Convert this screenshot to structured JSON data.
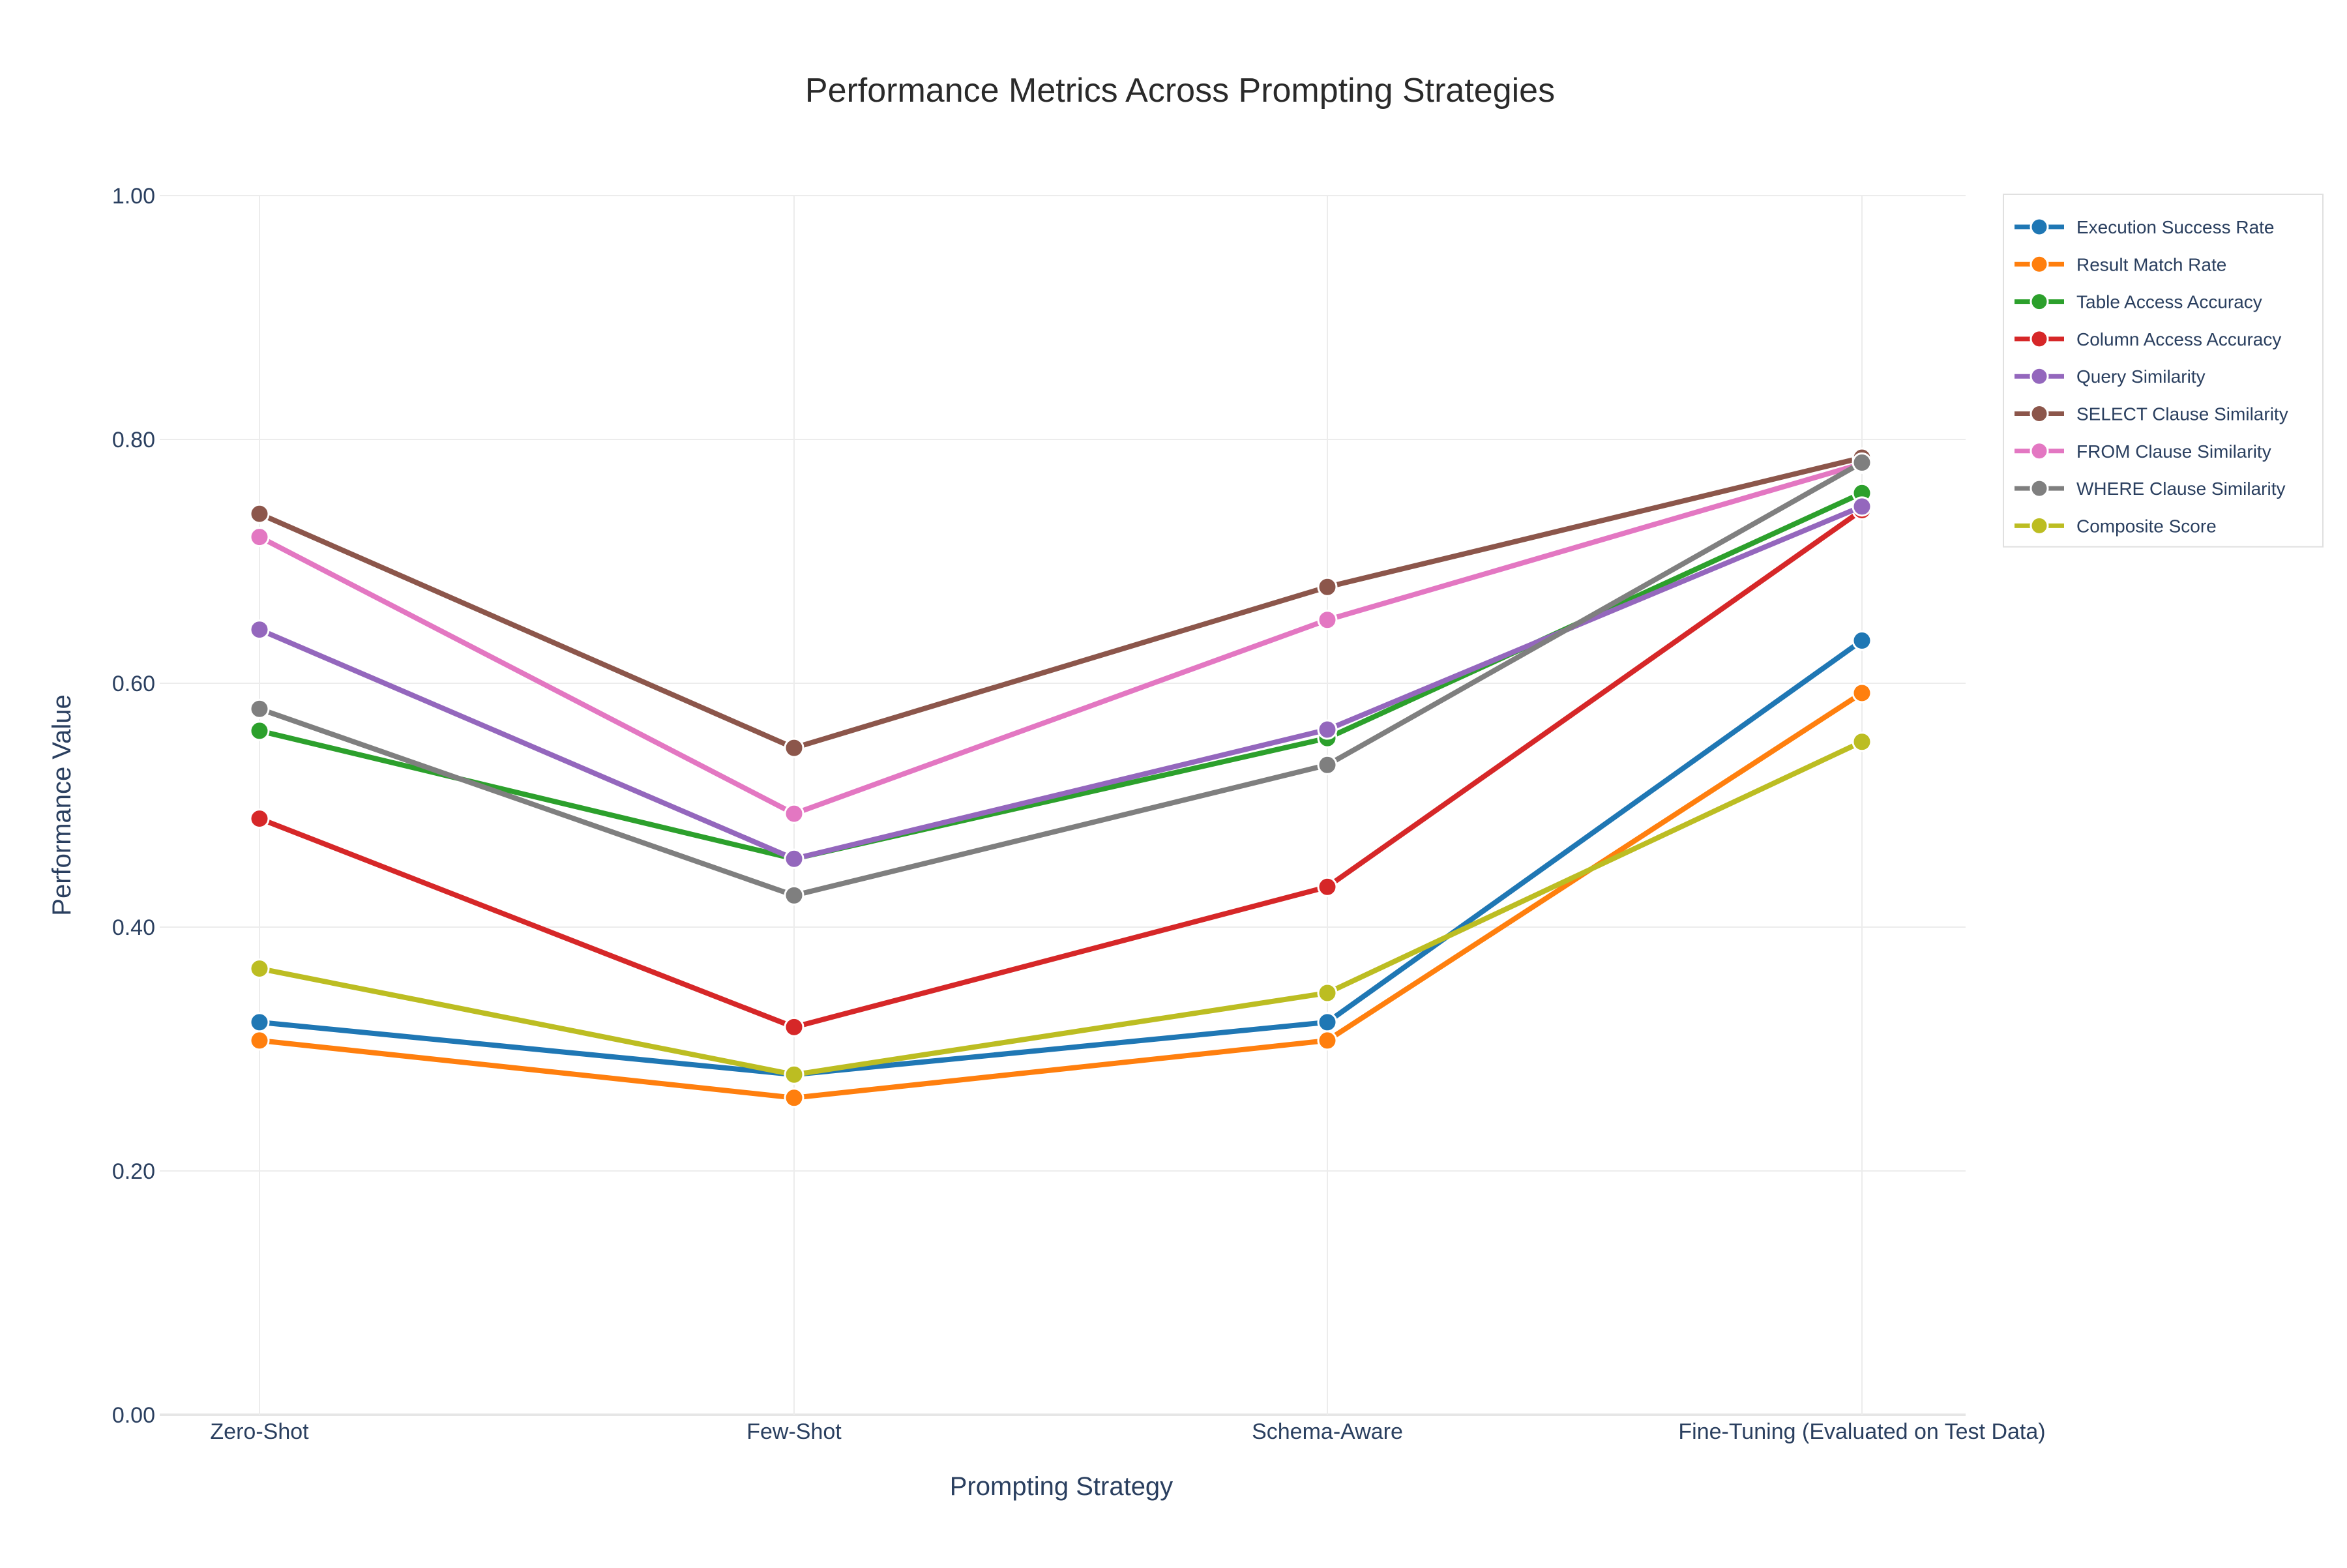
{
  "chart_data": {
    "type": "line",
    "title": "Performance Metrics Across Prompting Strategies",
    "xlabel": "Prompting Strategy",
    "ylabel": "Performance Value",
    "categories": [
      "Zero-Shot",
      "Few-Shot",
      "Schema-Aware",
      "Fine-Tuning (Evaluated on Test Data)"
    ],
    "ylim": [
      0,
      1
    ],
    "yticks": [
      "0.00",
      "0.20",
      "0.40",
      "0.60",
      "0.80",
      "1.00"
    ],
    "ytick_values": [
      0,
      0.2,
      0.4,
      0.6,
      0.8,
      1.0
    ],
    "grid": true,
    "legend_position": "top-right",
    "series": [
      {
        "name": "Execution Success Rate",
        "color": "#1f77b4",
        "values": [
          0.322,
          0.279,
          0.322,
          0.635
        ]
      },
      {
        "name": "Result Match Rate",
        "color": "#ff7f0e",
        "values": [
          0.307,
          0.26,
          0.307,
          0.592
        ]
      },
      {
        "name": "Table Access Accuracy",
        "color": "#2ca02c",
        "values": [
          0.561,
          0.456,
          0.555,
          0.756
        ]
      },
      {
        "name": "Column Access Accuracy",
        "color": "#d62728",
        "values": [
          0.489,
          0.318,
          0.433,
          0.742
        ]
      },
      {
        "name": "Query Similarity",
        "color": "#9467bd",
        "values": [
          0.644,
          0.456,
          0.562,
          0.745
        ]
      },
      {
        "name": "SELECT Clause Similarity",
        "color": "#8c564b",
        "values": [
          0.739,
          0.547,
          0.679,
          0.785
        ]
      },
      {
        "name": "FROM Clause Similarity",
        "color": "#e377c2",
        "values": [
          0.72,
          0.493,
          0.652,
          0.78
        ]
      },
      {
        "name": "WHERE Clause Similarity",
        "color": "#7f7f7f",
        "values": [
          0.579,
          0.426,
          0.533,
          0.781
        ]
      },
      {
        "name": "Composite Score",
        "color": "#bcbd22",
        "values": [
          0.366,
          0.279,
          0.346,
          0.552
        ]
      }
    ]
  }
}
